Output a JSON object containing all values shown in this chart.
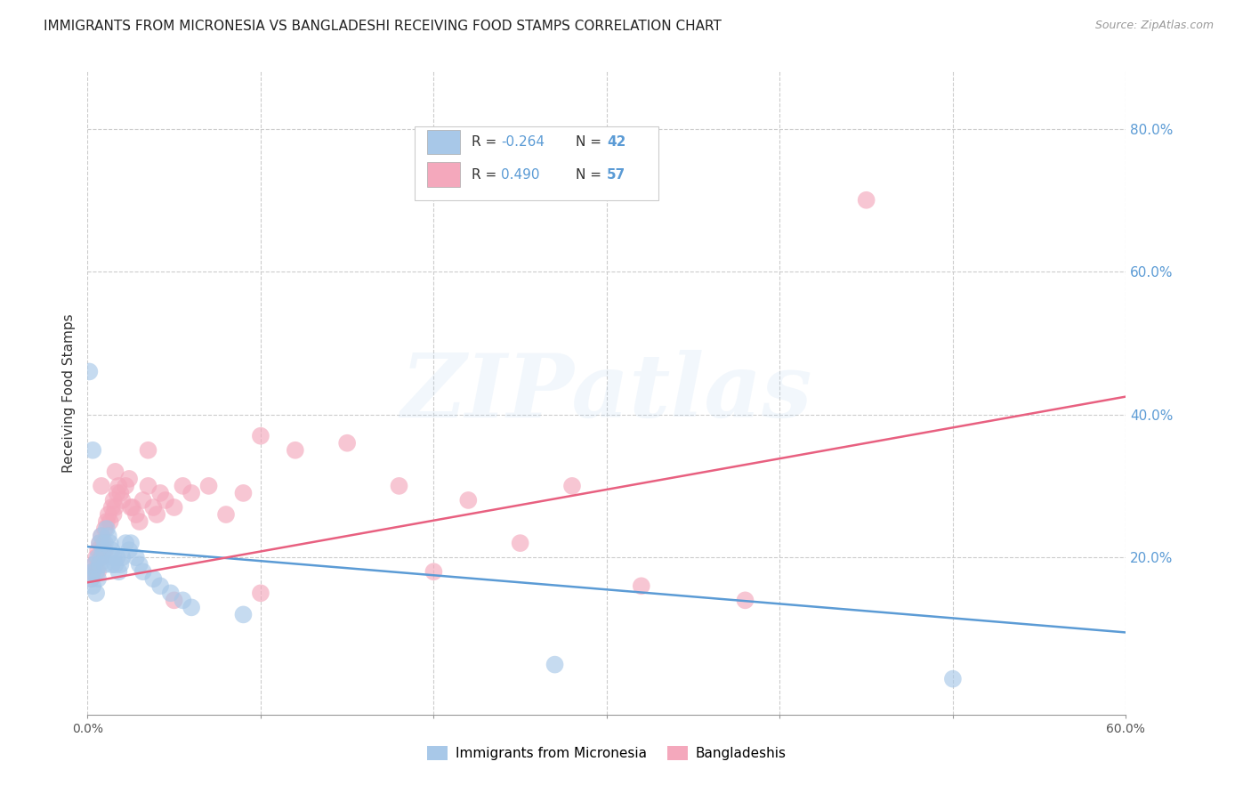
{
  "title": "IMMIGRANTS FROM MICRONESIA VS BANGLADESHI RECEIVING FOOD STAMPS CORRELATION CHART",
  "source": "Source: ZipAtlas.com",
  "ylabel": "Receiving Food Stamps",
  "xlim": [
    0.0,
    0.6
  ],
  "ylim": [
    -0.02,
    0.88
  ],
  "xtick_positions": [
    0.0,
    0.1,
    0.2,
    0.3,
    0.4,
    0.5,
    0.6
  ],
  "xticklabels": [
    "0.0%",
    "",
    "",
    "",
    "",
    "",
    "60.0%"
  ],
  "ytick_positions": [
    0.2,
    0.4,
    0.6,
    0.8
  ],
  "ytick_labels": [
    "20.0%",
    "40.0%",
    "60.0%",
    "80.0%"
  ],
  "grid_color": "#cccccc",
  "background_color": "#ffffff",
  "blue_color": "#A8C8E8",
  "pink_color": "#F4A8BC",
  "blue_line_color": "#5B9BD5",
  "pink_line_color": "#E86080",
  "legend_blue_R": "-0.264",
  "legend_blue_N": "42",
  "legend_pink_R": "0.490",
  "legend_pink_N": "57",
  "legend_label_blue": "Immigrants from Micronesia",
  "legend_label_pink": "Bangladeshis",
  "watermark_text": "ZIPatlas",
  "blue_scatter_x": [
    0.001,
    0.002,
    0.003,
    0.003,
    0.004,
    0.005,
    0.005,
    0.006,
    0.006,
    0.007,
    0.007,
    0.008,
    0.008,
    0.009,
    0.01,
    0.01,
    0.011,
    0.012,
    0.013,
    0.014,
    0.014,
    0.015,
    0.016,
    0.017,
    0.018,
    0.019,
    0.02,
    0.022,
    0.024,
    0.025,
    0.028,
    0.03,
    0.032,
    0.038,
    0.042,
    0.048,
    0.055,
    0.06,
    0.09,
    0.003,
    0.27,
    0.5
  ],
  "blue_scatter_y": [
    0.46,
    0.17,
    0.18,
    0.16,
    0.19,
    0.18,
    0.15,
    0.2,
    0.17,
    0.22,
    0.19,
    0.23,
    0.2,
    0.21,
    0.22,
    0.19,
    0.24,
    0.23,
    0.22,
    0.21,
    0.19,
    0.2,
    0.19,
    0.2,
    0.18,
    0.19,
    0.2,
    0.22,
    0.21,
    0.22,
    0.2,
    0.19,
    0.18,
    0.17,
    0.16,
    0.15,
    0.14,
    0.13,
    0.12,
    0.35,
    0.05,
    0.03
  ],
  "pink_scatter_x": [
    0.002,
    0.003,
    0.004,
    0.005,
    0.006,
    0.006,
    0.007,
    0.008,
    0.008,
    0.009,
    0.01,
    0.01,
    0.011,
    0.012,
    0.013,
    0.014,
    0.015,
    0.015,
    0.016,
    0.017,
    0.018,
    0.019,
    0.02,
    0.022,
    0.024,
    0.026,
    0.028,
    0.03,
    0.032,
    0.035,
    0.038,
    0.04,
    0.042,
    0.045,
    0.05,
    0.055,
    0.06,
    0.07,
    0.08,
    0.09,
    0.1,
    0.12,
    0.15,
    0.18,
    0.2,
    0.22,
    0.25,
    0.28,
    0.32,
    0.38,
    0.008,
    0.016,
    0.025,
    0.035,
    0.05,
    0.1,
    0.45
  ],
  "pink_scatter_y": [
    0.17,
    0.18,
    0.19,
    0.2,
    0.18,
    0.21,
    0.22,
    0.2,
    0.23,
    0.22,
    0.21,
    0.24,
    0.25,
    0.26,
    0.25,
    0.27,
    0.28,
    0.26,
    0.27,
    0.29,
    0.3,
    0.29,
    0.28,
    0.3,
    0.31,
    0.27,
    0.26,
    0.25,
    0.28,
    0.3,
    0.27,
    0.26,
    0.29,
    0.28,
    0.27,
    0.3,
    0.29,
    0.3,
    0.26,
    0.29,
    0.37,
    0.35,
    0.36,
    0.3,
    0.18,
    0.28,
    0.22,
    0.3,
    0.16,
    0.14,
    0.3,
    0.32,
    0.27,
    0.35,
    0.14,
    0.15,
    0.7
  ],
  "blue_line_x": [
    0.0,
    0.6
  ],
  "blue_line_y": [
    0.215,
    0.095
  ],
  "pink_line_x": [
    0.0,
    0.6
  ],
  "pink_line_y": [
    0.165,
    0.425
  ]
}
